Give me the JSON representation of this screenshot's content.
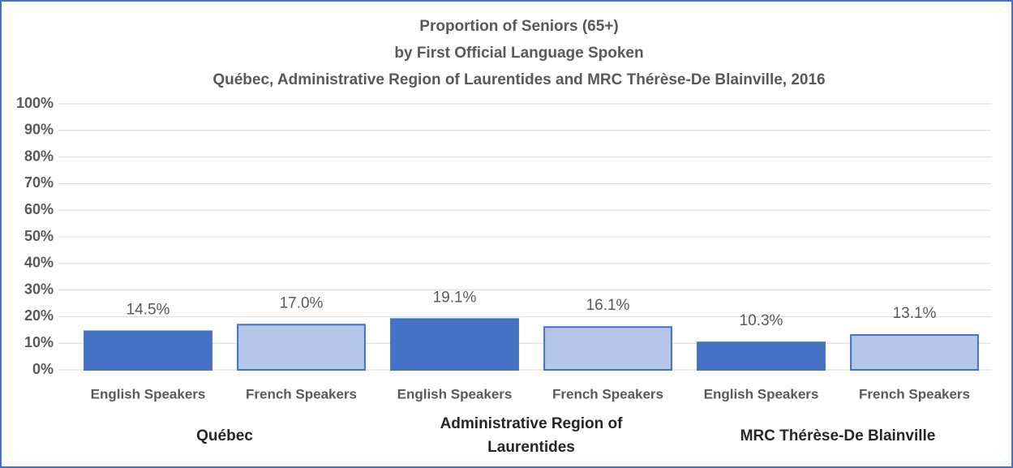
{
  "chart_data": {
    "type": "bar",
    "title": [
      "Proportion of Seniors (65+)",
      "by First Official Language Spoken",
      "Québec, Administrative Region of Laurentides and MRC Thérèse-De Blainville, 2016"
    ],
    "categories": [
      "English Speakers",
      "French Speakers",
      "English Speakers",
      "French Speakers",
      "English Speakers",
      "French Speakers"
    ],
    "groups": [
      "Québec",
      "Administrative Region of Laurentides",
      "MRC Thérèse-De Blainville"
    ],
    "values": [
      14.5,
      17.0,
      19.1,
      16.1,
      10.3,
      13.1
    ],
    "value_labels": [
      "14.5%",
      "17.0%",
      "19.1%",
      "16.1%",
      "10.3%",
      "13.1%"
    ],
    "colors": [
      "#4472c4",
      "#b4c7e7",
      "#4472c4",
      "#b4c7e7",
      "#4472c4",
      "#b4c7e7"
    ],
    "ylim": [
      0,
      100
    ],
    "yticks": [
      {
        "value": 0,
        "label": "0%"
      },
      {
        "value": 10,
        "label": "10%"
      },
      {
        "value": 20,
        "label": "20%"
      },
      {
        "value": 30,
        "label": "30%"
      },
      {
        "value": 40,
        "label": "40%"
      },
      {
        "value": 50,
        "label": "50%"
      },
      {
        "value": 60,
        "label": "60%"
      },
      {
        "value": 70,
        "label": "70%"
      },
      {
        "value": 80,
        "label": "80%"
      },
      {
        "value": 90,
        "label": "90%"
      },
      {
        "value": 100,
        "label": "100%"
      }
    ],
    "grid": true
  }
}
